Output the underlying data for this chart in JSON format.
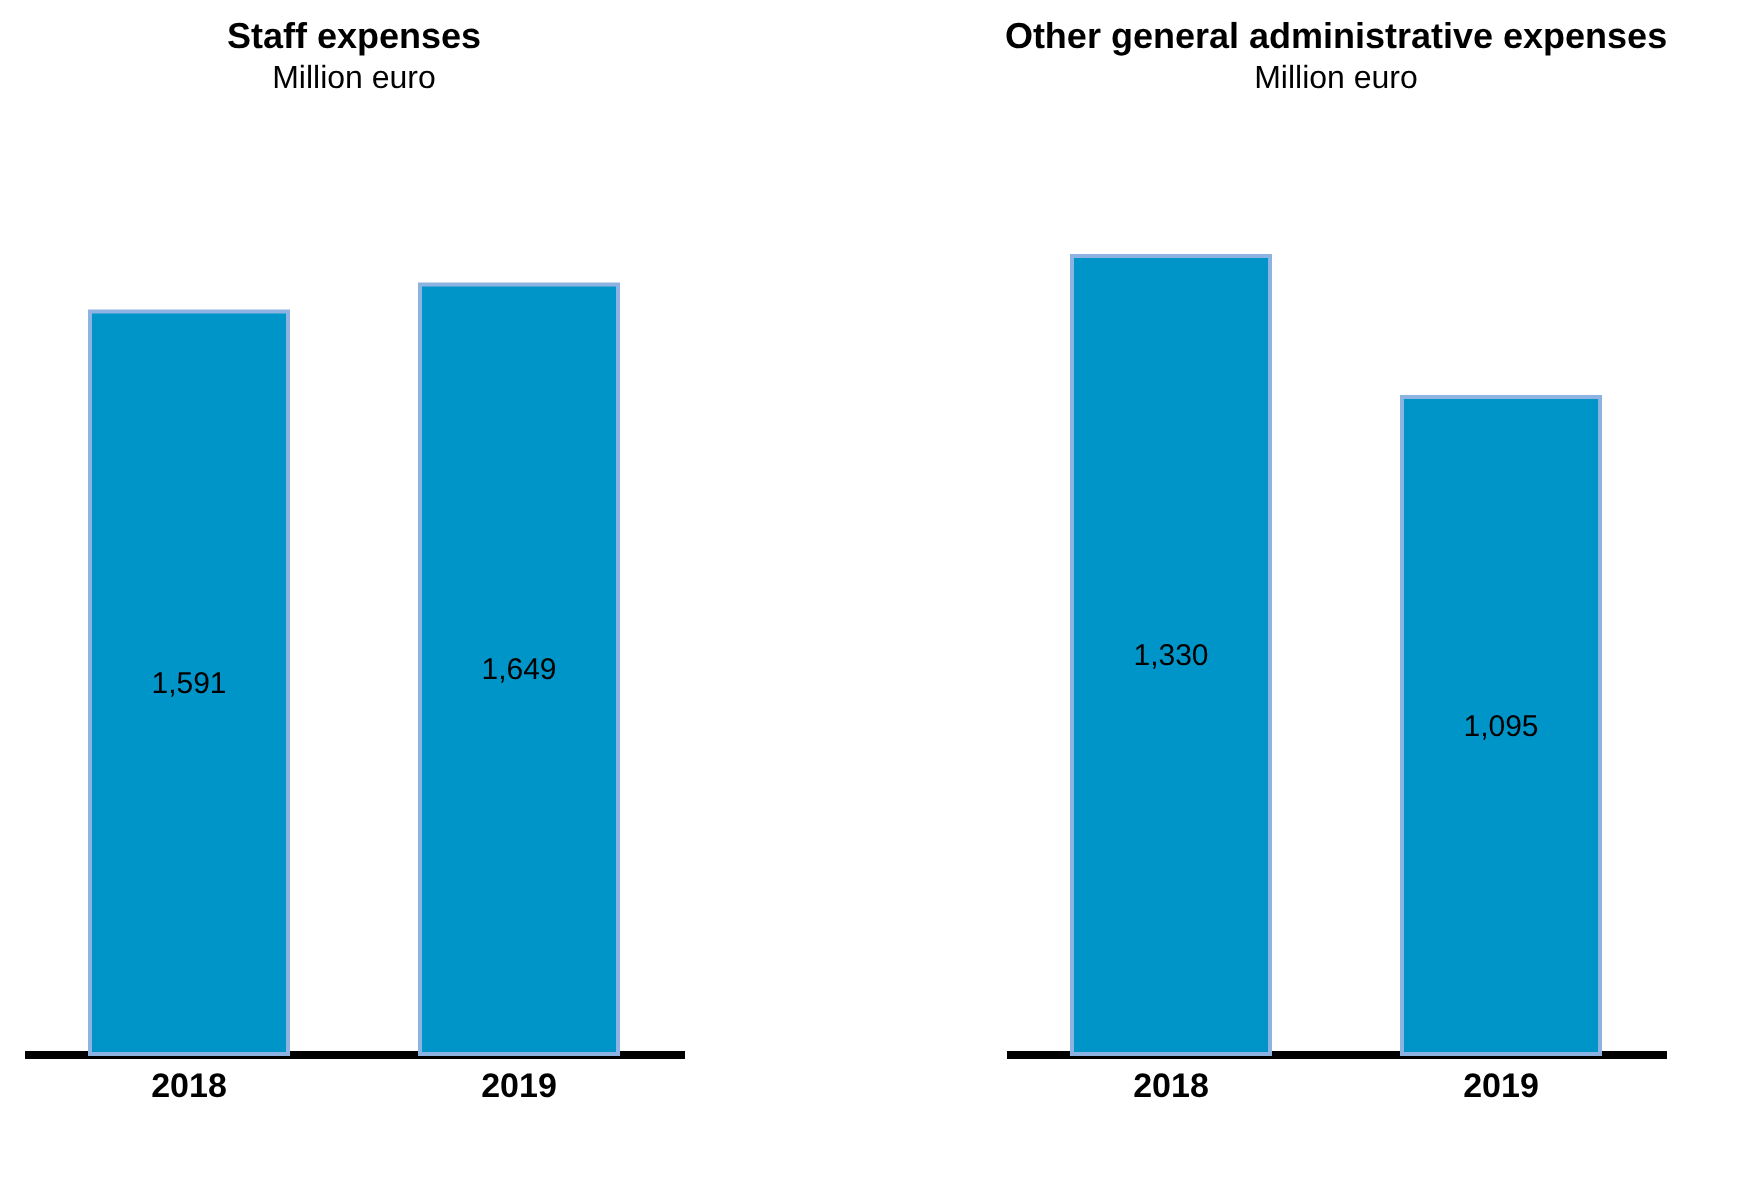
{
  "chart_data": [
    {
      "type": "bar",
      "title": "Staff expenses",
      "subtitle": "Million euro",
      "categories": [
        "2018",
        "2019"
      ],
      "values": [
        1591,
        1649
      ],
      "value_labels": [
        "1,591",
        "1,649"
      ],
      "color": "#0095c8"
    },
    {
      "type": "bar",
      "title": "Other general administrative expenses",
      "subtitle": "Million euro",
      "categories": [
        "2018",
        "2019"
      ],
      "values": [
        1330,
        1095
      ],
      "value_labels": [
        "1,330",
        "1,095"
      ],
      "color": "#0095c8"
    }
  ]
}
